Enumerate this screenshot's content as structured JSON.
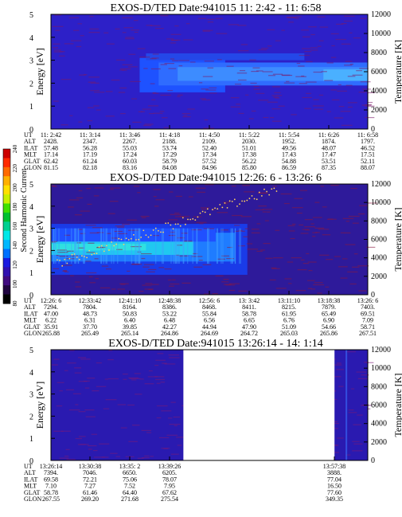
{
  "colorbar": {
    "label": "Second Harmonic Current",
    "ticks": [
      "240",
      "220",
      "200",
      "180",
      "160",
      "140",
      "120",
      "100",
      "80"
    ],
    "colors": [
      "#cc0000",
      "#ff2a00",
      "#ff6a00",
      "#ffb000",
      "#ffe000",
      "#c8f000",
      "#40e000",
      "#00c030",
      "#00d090",
      "#00e8e8",
      "#00b8ff",
      "#0070ff",
      "#1a1ae0",
      "#3010b0",
      "#400a80",
      "#200440",
      "#000000"
    ]
  },
  "chart_data": [
    {
      "type": "heatmap",
      "title": "EXOS-D/TED   Date:941015  11: 2:42 - 11: 6:58",
      "ylabel": "Energy [eV]",
      "y2label": "Temperature [K]",
      "ylim": [
        0,
        5
      ],
      "y2lim": [
        0,
        12000
      ],
      "yticks": [
        "0",
        "1",
        "2",
        "3",
        "4",
        "5"
      ],
      "y2ticks": [
        "0",
        "2000",
        "4000",
        "6000",
        "8000",
        "10000",
        "12000"
      ],
      "table": {
        "row_labels": [
          "UT",
          "ALT",
          "ILAT",
          "MLT",
          "GLAT",
          "GLON"
        ],
        "columns": [
          [
            "11: 2:42",
            "2428.",
            "57.48",
            "17.14",
            "62.42",
            "81.15"
          ],
          [
            "11: 3:14",
            "2347.",
            "56.28",
            "17.19",
            "61.24",
            "82.18"
          ],
          [
            "11: 3:46",
            "2267.",
            "55.03",
            "17.24",
            "60.03",
            "83.16"
          ],
          [
            "11: 4:18",
            "2188.",
            "53.74",
            "17.29",
            "58.79",
            "84.08"
          ],
          [
            "11: 4:50",
            "2109.",
            "52.40",
            "17.34",
            "57.52",
            "84.96"
          ],
          [
            "11: 5:22",
            "2030.",
            "51.01",
            "17.38",
            "56.22",
            "85.80"
          ],
          [
            "11: 5:54",
            "1952.",
            "49.56",
            "17.43",
            "54.88",
            "86.59"
          ],
          [
            "11: 6:26",
            "1874.",
            "48.07",
            "17.47",
            "53.51",
            "87.35"
          ],
          [
            "11: 6:58",
            "1797.",
            "46.52",
            "17.51",
            "52.11",
            "88.07"
          ]
        ]
      }
    },
    {
      "type": "heatmap",
      "title": "EXOS-D/TED   Date:941015  12:26: 6 - 13:26: 6",
      "ylabel": "Energy [eV]",
      "y2label": "Temperature [K]",
      "ylim": [
        0,
        5
      ],
      "y2lim": [
        0,
        12000
      ],
      "yticks": [
        "0",
        "1",
        "2",
        "3",
        "4",
        "5"
      ],
      "y2ticks": [
        "0",
        "2000",
        "4000",
        "6000",
        "8000",
        "10000",
        "12000"
      ],
      "table": {
        "row_labels": [
          "UT",
          "ALT",
          "ILAT",
          "MLT",
          "GLAT",
          "GLON"
        ],
        "columns": [
          [
            "12:26: 6",
            "7294.",
            "47.00",
            "6.22",
            "35.91",
            "265.88"
          ],
          [
            "12:33:42",
            "7804.",
            "48.73",
            "6.31",
            "37.70",
            "265.49"
          ],
          [
            "12:41:10",
            "8164.",
            "50.83",
            "6.40",
            "39.85",
            "265.14"
          ],
          [
            "12:48:38",
            "8386.",
            "53.22",
            "6.48",
            "42.27",
            "264.86"
          ],
          [
            "12:56: 6",
            "8468.",
            "55.84",
            "6.56",
            "44.94",
            "264.69"
          ],
          [
            "13: 3:42",
            "8411.",
            "58.78",
            "6.65",
            "47.90",
            "264.72"
          ],
          [
            "13:11:10",
            "8215.",
            "61.95",
            "6.76",
            "51.09",
            "265.03"
          ],
          [
            "13:18:38",
            "7879.",
            "65.49",
            "6.90",
            "54.66",
            "265.86"
          ],
          [
            "13:26: 6",
            "7403.",
            "69.51",
            "7.09",
            "58.71",
            "267.51"
          ]
        ]
      }
    },
    {
      "type": "heatmap",
      "title": "EXOS-D/TED   Date:941015  13:26:14 - 14: 1:14",
      "ylabel": "Energy [eV]",
      "y2label": "Temperature [K]",
      "ylim": [
        0,
        5
      ],
      "y2lim": [
        0,
        12000
      ],
      "yticks": [
        "0",
        "1",
        "2",
        "3",
        "4",
        "5"
      ],
      "y2ticks": [
        "0",
        "2000",
        "4000",
        "6000",
        "8000",
        "10000",
        "12000"
      ],
      "table": {
        "row_labels": [
          "UT",
          "ALT",
          "ILAT",
          "MLT",
          "GLAT",
          "GLON"
        ],
        "columns": [
          [
            "13:26:14",
            "7394.",
            "69.58",
            "7.10",
            "58.78",
            "267.55"
          ],
          [
            "13:30:38",
            "7046.",
            "72.21",
            "7.27",
            "61.46",
            "269.20"
          ],
          [
            "13:35: 2",
            "6650.",
            "75.06",
            "7.52",
            "64.40",
            "271.68"
          ],
          [
            "13:39:26",
            "6205.",
            "78.07",
            "7.95",
            "67.62",
            "275.54"
          ],
          [
            "13:57:38",
            "3888.",
            "77.04",
            "16.50",
            "77.60",
            "349.35"
          ]
        ]
      }
    }
  ]
}
